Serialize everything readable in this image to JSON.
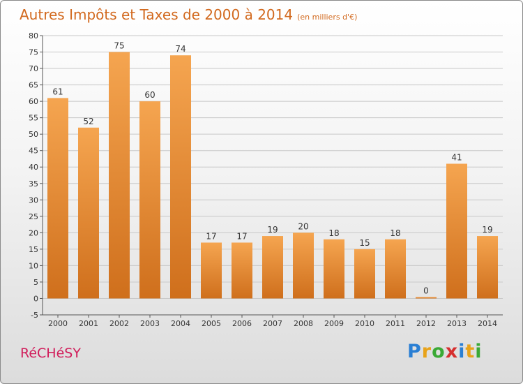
{
  "title": "Autres Impôts et Taxes de 2000 à 2014",
  "subtitle": "(en milliers d'€)",
  "commune": "RéCHéSY",
  "logo": {
    "text": "Proxiti",
    "letters": [
      {
        "ch": "P",
        "color": "#2a7fd4"
      },
      {
        "ch": "r",
        "color": "#e8a31a"
      },
      {
        "ch": "o",
        "color": "#3aa935"
      },
      {
        "ch": "x",
        "color": "#d62f2f"
      },
      {
        "ch": "i",
        "color": "#2a7fd4"
      },
      {
        "ch": "t",
        "color": "#e8a31a"
      },
      {
        "ch": "i",
        "color": "#3aa935"
      }
    ]
  },
  "colors": {
    "title": "#d2691e",
    "bar_light": "#f5a550",
    "bar_dark": "#cf6f1c",
    "grid": "#c8c8c8",
    "commune": "#d11c5a"
  },
  "chart_data": {
    "type": "bar",
    "categories": [
      "2000",
      "2001",
      "2002",
      "2003",
      "2004",
      "2005",
      "2006",
      "2007",
      "2008",
      "2009",
      "2010",
      "2011",
      "2012",
      "2013",
      "2014"
    ],
    "values": [
      61,
      52,
      75,
      60,
      74,
      17,
      17,
      19,
      20,
      18,
      15,
      18,
      0,
      41,
      19
    ],
    "ylim": [
      -5,
      80
    ],
    "yticks": [
      -5,
      0,
      5,
      10,
      15,
      20,
      25,
      30,
      35,
      40,
      45,
      50,
      55,
      60,
      65,
      70,
      75,
      80
    ],
    "grid": true,
    "xlabel": "",
    "ylabel": ""
  }
}
